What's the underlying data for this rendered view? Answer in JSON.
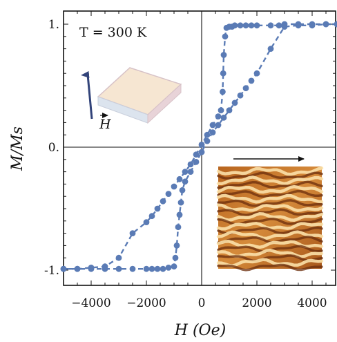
{
  "chart_data": {
    "type": "scatter",
    "title": "",
    "xlabel": "H (Oe)",
    "ylabel": "M/Ms",
    "xlim": [
      -5200,
      5000
    ],
    "ylim": [
      -1.1,
      1.1
    ],
    "x_ticks": [
      -4000,
      -2000,
      0,
      2000,
      4000
    ],
    "x_tick_labels": [
      "−4000",
      "−2000",
      "0",
      "2000",
      "4000"
    ],
    "y_ticks": [
      -1,
      0,
      1
    ],
    "y_tick_labels": [
      "-1.",
      "0.",
      "1."
    ],
    "grid": false,
    "annotation": "T = 300 K",
    "insets": {
      "film_label": "H",
      "domain_image": "stripe domain micrograph"
    },
    "colors": {
      "series": "#5a7bb5",
      "film": "#f6e6d2",
      "arrow": "#33447a"
    },
    "series": [
      {
        "values_descending": [
          [
            4900,
            1.0
          ],
          [
            4500,
            1.0
          ],
          [
            4000,
            1.0
          ],
          [
            3500,
            1.0
          ],
          [
            3000,
            1.0
          ],
          [
            2800,
            0.99
          ],
          [
            2500,
            0.99
          ],
          [
            2000,
            0.99
          ],
          [
            1800,
            0.99
          ],
          [
            1600,
            0.99
          ],
          [
            1400,
            0.99
          ],
          [
            1200,
            0.99
          ],
          [
            1100,
            0.98
          ],
          [
            1000,
            0.98
          ],
          [
            900,
            0.97
          ],
          [
            850,
            0.9
          ],
          [
            800,
            0.75
          ],
          [
            780,
            0.6
          ],
          [
            760,
            0.45
          ],
          [
            700,
            0.3
          ],
          [
            600,
            0.25
          ],
          [
            400,
            0.18
          ],
          [
            200,
            0.1
          ],
          [
            0,
            0.02
          ],
          [
            -200,
            -0.06
          ],
          [
            -400,
            -0.14
          ],
          [
            -600,
            -0.2
          ],
          [
            -800,
            -0.26
          ],
          [
            -1000,
            -0.32
          ],
          [
            -1200,
            -0.38
          ],
          [
            -1400,
            -0.44
          ],
          [
            -1600,
            -0.5
          ],
          [
            -1800,
            -0.56
          ],
          [
            -2000,
            -0.61
          ],
          [
            -2500,
            -0.7
          ],
          [
            -3000,
            -0.9
          ],
          [
            -3500,
            -0.97
          ],
          [
            -4000,
            -0.98
          ],
          [
            -4500,
            -0.99
          ],
          [
            -5000,
            -0.99
          ]
        ],
        "values_ascending": [
          [
            -5000,
            -0.99
          ],
          [
            -4500,
            -0.99
          ],
          [
            -4000,
            -0.99
          ],
          [
            -3500,
            -0.99
          ],
          [
            -3000,
            -0.99
          ],
          [
            -2500,
            -0.99
          ],
          [
            -2000,
            -0.99
          ],
          [
            -1800,
            -0.99
          ],
          [
            -1600,
            -0.99
          ],
          [
            -1400,
            -0.99
          ],
          [
            -1200,
            -0.98
          ],
          [
            -1000,
            -0.97
          ],
          [
            -950,
            -0.9
          ],
          [
            -900,
            -0.8
          ],
          [
            -850,
            -0.65
          ],
          [
            -800,
            -0.55
          ],
          [
            -750,
            -0.45
          ],
          [
            -700,
            -0.35
          ],
          [
            -600,
            -0.28
          ],
          [
            -400,
            -0.2
          ],
          [
            -200,
            -0.12
          ],
          [
            0,
            -0.04
          ],
          [
            200,
            0.05
          ],
          [
            400,
            0.12
          ],
          [
            600,
            0.18
          ],
          [
            800,
            0.24
          ],
          [
            1000,
            0.3
          ],
          [
            1200,
            0.36
          ],
          [
            1400,
            0.42
          ],
          [
            1600,
            0.48
          ],
          [
            1800,
            0.54
          ],
          [
            2000,
            0.6
          ],
          [
            2500,
            0.8
          ],
          [
            3000,
            0.98
          ],
          [
            3500,
            0.99
          ],
          [
            4000,
            0.99
          ],
          [
            4500,
            1.0
          ],
          [
            4900,
            1.0
          ]
        ]
      }
    ]
  }
}
